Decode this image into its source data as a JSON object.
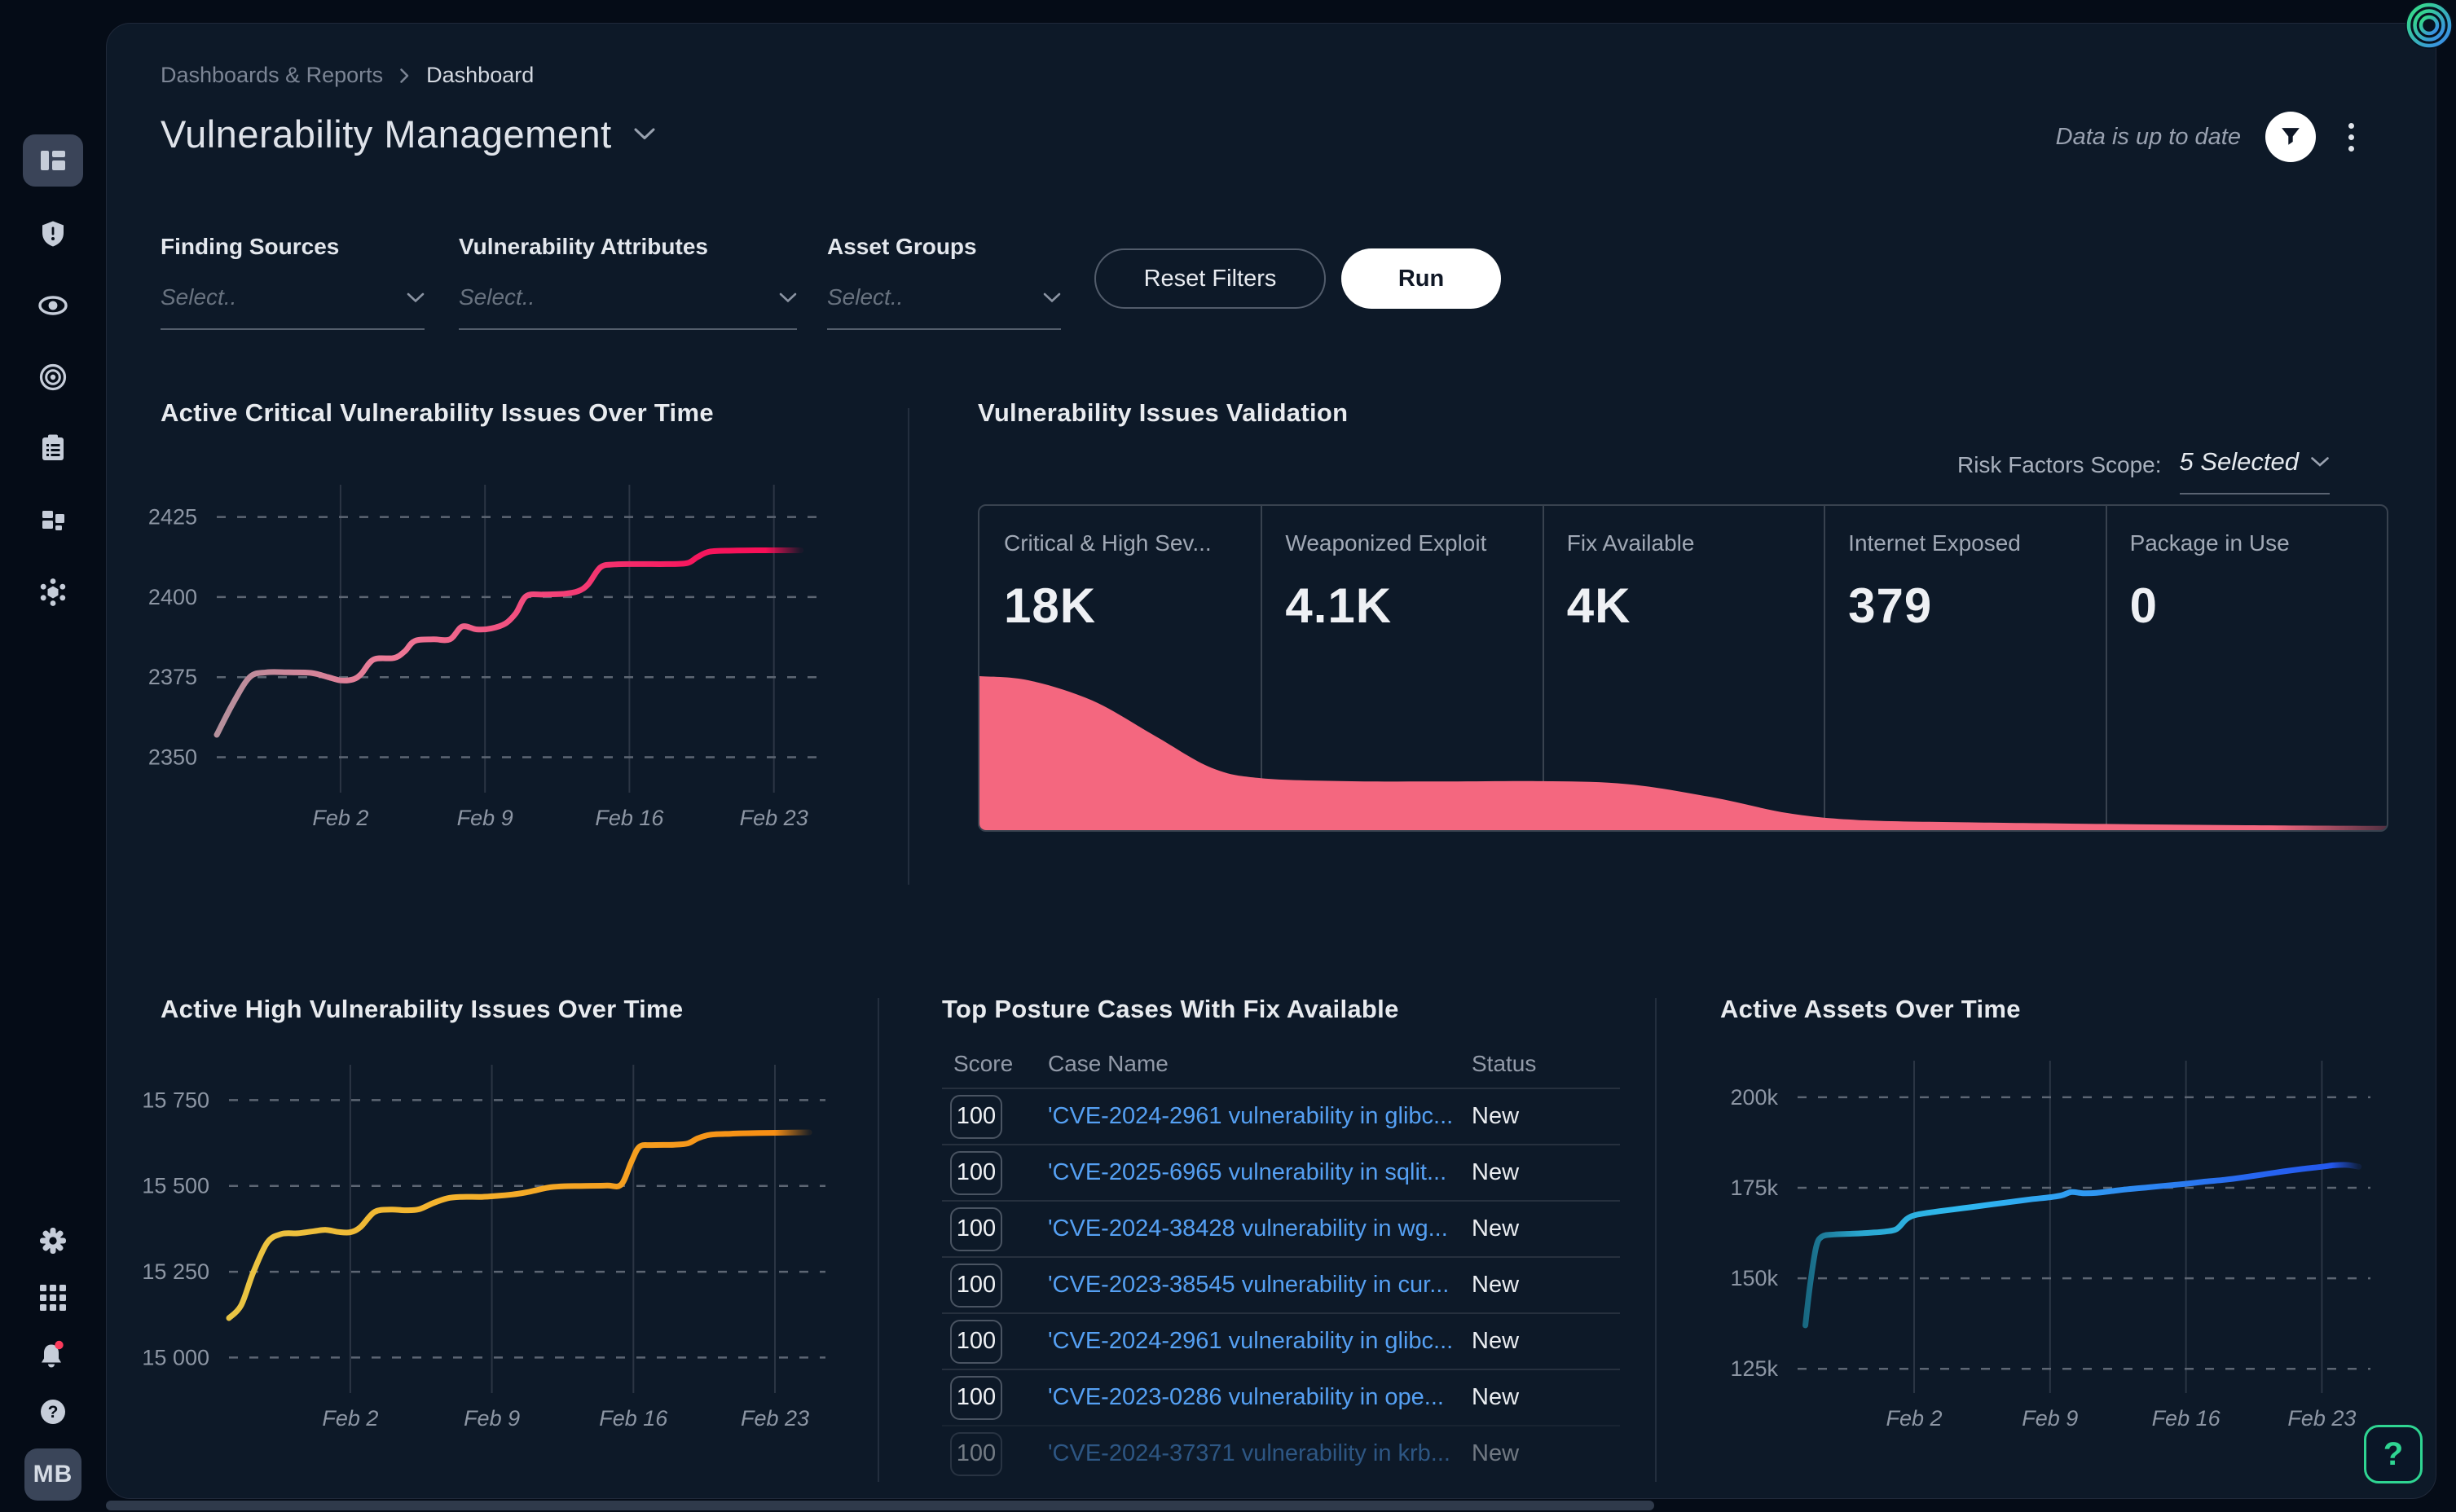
{
  "header": {
    "breadcrumb": [
      "Dashboards & Reports",
      "Dashboard"
    ],
    "title": "Vulnerability Management",
    "status_text": "Data is up to date"
  },
  "filters": {
    "groups": [
      {
        "label": "Finding Sources",
        "placeholder": "Select.."
      },
      {
        "label": "Vulnerability Attributes",
        "placeholder": "Select.."
      },
      {
        "label": "Asset Groups",
        "placeholder": "Select.."
      }
    ],
    "reset_label": "Reset Filters",
    "run_label": "Run"
  },
  "validation": {
    "risk_label": "Risk Factors Scope:",
    "risk_value": "5 Selected",
    "stages": [
      {
        "label": "Critical & High Sev...",
        "value": "18K"
      },
      {
        "label": "Weaponized Exploit",
        "value": "4.1K"
      },
      {
        "label": "Fix Available",
        "value": "4K"
      },
      {
        "label": "Internet Exposed",
        "value": "379"
      },
      {
        "label": "Package in Use",
        "value": "0"
      }
    ],
    "funnel_color": "#f4677f"
  },
  "table": {
    "title": "Top Posture Cases With Fix Available",
    "columns": [
      "Score",
      "Case Name",
      "Status"
    ],
    "rows": [
      {
        "score": "100",
        "name": "'CVE-2024-2961 vulnerability in glibc...",
        "status": "New"
      },
      {
        "score": "100",
        "name": "'CVE-2025-6965 vulnerability in sqlit...",
        "status": "New"
      },
      {
        "score": "100",
        "name": "'CVE-2024-38428 vulnerability in wg...",
        "status": "New"
      },
      {
        "score": "100",
        "name": "'CVE-2023-38545 vulnerability in cur...",
        "status": "New"
      },
      {
        "score": "100",
        "name": "'CVE-2024-2961 vulnerability in glibc...",
        "status": "New"
      },
      {
        "score": "100",
        "name": "'CVE-2023-0286 vulnerability in ope...",
        "status": "New"
      },
      {
        "score": "100",
        "name": "'CVE-2024-37371 vulnerability in krb...",
        "status": "New"
      }
    ]
  },
  "sidebar": {
    "avatar": "MB",
    "icons": [
      "orca-logo",
      "dashboards",
      "shield-alert",
      "eye",
      "target",
      "clipboard",
      "inventory-blocks",
      "spread",
      "gear",
      "apps-grid",
      "bell",
      "help-circle"
    ],
    "notification_dot_color": "#fb3b5c"
  },
  "help_label": "?",
  "chart_data": [
    {
      "id": "critical",
      "type": "line",
      "title": "Active Critical Vulnerability Issues Over Time",
      "x_domain": [
        0,
        29.5
      ],
      "y_domain": [
        2342,
        2431
      ],
      "x_ticks": [
        {
          "d": 6,
          "label": "Feb 2"
        },
        {
          "d": 13,
          "label": "Feb 9"
        },
        {
          "d": 20,
          "label": "Feb 16"
        },
        {
          "d": 27,
          "label": "Feb 23"
        }
      ],
      "y_ticks": [
        {
          "v": 2350,
          "label": "2350"
        },
        {
          "v": 2375,
          "label": "2375"
        },
        {
          "v": 2400,
          "label": "2400"
        },
        {
          "v": 2425,
          "label": "2425"
        }
      ],
      "points": [
        [
          0,
          2357
        ],
        [
          0.8,
          2367
        ],
        [
          1.6,
          2375
        ],
        [
          2.4,
          2376.5
        ],
        [
          3.5,
          2376.5
        ],
        [
          4.6,
          2376.3
        ],
        [
          5.4,
          2375
        ],
        [
          6,
          2374
        ],
        [
          6.6,
          2374.3
        ],
        [
          7,
          2376
        ],
        [
          7.6,
          2380.5
        ],
        [
          8.6,
          2381
        ],
        [
          9.1,
          2383
        ],
        [
          9.6,
          2386.3
        ],
        [
          10.5,
          2386.8
        ],
        [
          11.3,
          2386.8
        ],
        [
          11.9,
          2390.8
        ],
        [
          12.6,
          2389.9
        ],
        [
          13.3,
          2390.2
        ],
        [
          14,
          2391.8
        ],
        [
          14.5,
          2395
        ],
        [
          15,
          2400.3
        ],
        [
          15.8,
          2400.8
        ],
        [
          16.8,
          2401
        ],
        [
          17.5,
          2401.8
        ],
        [
          18,
          2404
        ],
        [
          18.6,
          2409.3
        ],
        [
          19.3,
          2410.2
        ],
        [
          20.5,
          2410.3
        ],
        [
          21.8,
          2410.3
        ],
        [
          22.8,
          2410.6
        ],
        [
          23.3,
          2412.5
        ],
        [
          23.9,
          2414.2
        ],
        [
          25,
          2414.5
        ],
        [
          26.5,
          2414.6
        ],
        [
          28.3,
          2414.6
        ]
      ],
      "gradient": [
        [
          0,
          "#b4909c",
          1
        ],
        [
          0.3,
          "#ee7a97",
          1
        ],
        [
          0.55,
          "#f2477b",
          1
        ],
        [
          0.8,
          "#f6195f",
          1
        ],
        [
          0.94,
          "#f80e57",
          1
        ],
        [
          1,
          "#f80e57",
          0.06
        ]
      ]
    },
    {
      "id": "validation_funnel",
      "type": "area",
      "title": "Vulnerability Issues Validation",
      "stage_values": [
        18000,
        4100,
        4000,
        379,
        0
      ],
      "shape": [
        [
          0,
          0.475
        ],
        [
          0.035,
          0.462
        ],
        [
          0.08,
          0.4
        ],
        [
          0.125,
          0.29
        ],
        [
          0.165,
          0.192
        ],
        [
          0.2,
          0.16
        ],
        [
          0.26,
          0.151
        ],
        [
          0.33,
          0.15
        ],
        [
          0.4,
          0.151
        ],
        [
          0.46,
          0.142
        ],
        [
          0.52,
          0.102
        ],
        [
          0.575,
          0.052
        ],
        [
          0.625,
          0.031
        ],
        [
          0.7,
          0.024
        ],
        [
          0.8,
          0.019
        ],
        [
          0.9,
          0.015
        ],
        [
          1,
          0.013
        ]
      ],
      "fill": "#f4677f"
    },
    {
      "id": "high",
      "type": "line",
      "title": "Active High Vulnerability Issues Over Time",
      "x_domain": [
        0,
        29.5
      ],
      "y_domain": [
        14925,
        15815
      ],
      "x_ticks": [
        {
          "d": 6,
          "label": "Feb 2"
        },
        {
          "d": 13,
          "label": "Feb 9"
        },
        {
          "d": 20,
          "label": "Feb 16"
        },
        {
          "d": 27,
          "label": "Feb 23"
        }
      ],
      "y_ticks": [
        {
          "v": 15000,
          "label": "15 000"
        },
        {
          "v": 15250,
          "label": "15 250"
        },
        {
          "v": 15500,
          "label": "15 500"
        },
        {
          "v": 15750,
          "label": "15 750"
        }
      ],
      "points": [
        [
          0,
          15115
        ],
        [
          0.6,
          15152
        ],
        [
          1.2,
          15248
        ],
        [
          1.9,
          15335
        ],
        [
          2.6,
          15360
        ],
        [
          3.4,
          15362
        ],
        [
          4.2,
          15368
        ],
        [
          4.8,
          15372
        ],
        [
          5.4,
          15366
        ],
        [
          6,
          15365
        ],
        [
          6.5,
          15380
        ],
        [
          7.2,
          15424
        ],
        [
          8,
          15431
        ],
        [
          8.7,
          15429
        ],
        [
          9.4,
          15432
        ],
        [
          10.1,
          15450
        ],
        [
          10.8,
          15464
        ],
        [
          11.5,
          15468
        ],
        [
          12.5,
          15468
        ],
        [
          13.3,
          15471
        ],
        [
          14,
          15475
        ],
        [
          14.7,
          15481
        ],
        [
          15.3,
          15489
        ],
        [
          15.9,
          15496
        ],
        [
          16.6,
          15499
        ],
        [
          17.6,
          15500
        ],
        [
          18.7,
          15501
        ],
        [
          19.4,
          15504
        ],
        [
          19.9,
          15570
        ],
        [
          20.3,
          15614
        ],
        [
          20.9,
          15619
        ],
        [
          22,
          15620
        ],
        [
          22.7,
          15624
        ],
        [
          23.2,
          15639
        ],
        [
          23.8,
          15649
        ],
        [
          24.8,
          15652
        ],
        [
          26.2,
          15654
        ],
        [
          27.5,
          15655
        ],
        [
          28.7,
          15656
        ]
      ],
      "gradient": [
        [
          0,
          "#e9c544",
          1
        ],
        [
          0.35,
          "#f4b42e",
          1
        ],
        [
          0.7,
          "#f59e1f",
          1
        ],
        [
          0.94,
          "#f78e13",
          1
        ],
        [
          1,
          "#f78e13",
          0.08
        ]
      ]
    },
    {
      "id": "assets",
      "type": "line",
      "title": "Active Assets Over Time",
      "x_domain": [
        0,
        29.5
      ],
      "y_domain": [
        121000,
        206500
      ],
      "x_ticks": [
        {
          "d": 6,
          "label": "Feb 2"
        },
        {
          "d": 13,
          "label": "Feb 9"
        },
        {
          "d": 20,
          "label": "Feb 16"
        },
        {
          "d": 27,
          "label": "Feb 23"
        }
      ],
      "y_ticks": [
        {
          "v": 125000,
          "label": "125k"
        },
        {
          "v": 150000,
          "label": "150k"
        },
        {
          "v": 175000,
          "label": "175k"
        },
        {
          "v": 200000,
          "label": "200k"
        }
      ],
      "points": [
        [
          0.4,
          137000
        ],
        [
          0.65,
          148500
        ],
        [
          0.95,
          158500
        ],
        [
          1.25,
          161500
        ],
        [
          1.9,
          162100
        ],
        [
          2.8,
          162300
        ],
        [
          3.8,
          162600
        ],
        [
          4.5,
          162900
        ],
        [
          5.1,
          163600
        ],
        [
          5.6,
          166300
        ],
        [
          6.1,
          167500
        ],
        [
          7,
          168300
        ],
        [
          8,
          169000
        ],
        [
          9,
          169700
        ],
        [
          10,
          170400
        ],
        [
          11,
          171100
        ],
        [
          12,
          171800
        ],
        [
          13,
          172400
        ],
        [
          13.6,
          172900
        ],
        [
          14.1,
          173800
        ],
        [
          14.7,
          173500
        ],
        [
          15.4,
          173600
        ],
        [
          16.2,
          174100
        ],
        [
          17,
          174600
        ],
        [
          18,
          175100
        ],
        [
          19,
          175600
        ],
        [
          20,
          176100
        ],
        [
          21,
          176700
        ],
        [
          22,
          177200
        ],
        [
          23,
          177900
        ],
        [
          24,
          178700
        ],
        [
          25,
          179500
        ],
        [
          26,
          180200
        ],
        [
          27,
          180800
        ],
        [
          27.6,
          181200
        ],
        [
          28.3,
          181300
        ],
        [
          28.9,
          180800
        ]
      ],
      "gradient": [
        [
          0,
          "#196c86",
          0.95
        ],
        [
          0.1,
          "#2aa7d0",
          1
        ],
        [
          0.28,
          "#2fb9f0",
          1
        ],
        [
          0.55,
          "#2f92f2",
          1
        ],
        [
          0.8,
          "#2767f0",
          1
        ],
        [
          0.95,
          "#2458ee",
          1
        ],
        [
          1,
          "#2458ee",
          0.12
        ]
      ]
    }
  ]
}
